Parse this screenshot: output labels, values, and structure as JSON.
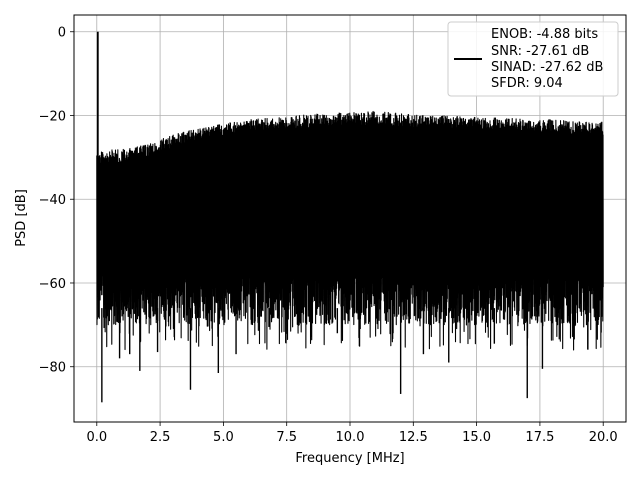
{
  "chart_data": {
    "type": "line",
    "xlabel": "Frequency [MHz]",
    "ylabel": "PSD [dB]",
    "xlim": [
      -0.9,
      20.9
    ],
    "ylim": [
      -93.2,
      4.0
    ],
    "x_ticks": [
      0.0,
      2.5,
      5.0,
      7.5,
      10.0,
      12.5,
      15.0,
      17.5,
      20.0
    ],
    "x_tick_labels": [
      "0.0",
      "2.5",
      "5.0",
      "7.5",
      "10.0",
      "12.5",
      "15.0",
      "17.5",
      "20.0"
    ],
    "y_ticks": [
      0,
      -20,
      -40,
      -60,
      -80
    ],
    "y_tick_labels": [
      "0",
      "−20",
      "−40",
      "−60",
      "−80"
    ],
    "grid": true,
    "legend_position": "top-right",
    "series": [
      {
        "legend_lines": [
          "ENOB: -4.88 bits",
          "SNR: -27.61 dB",
          "SINAD: -27.62 dB",
          "SFDR: 9.04"
        ],
        "color": "#000000",
        "spike": {
          "x": 0.04,
          "y": 0.0
        },
        "x_range": [
          0.0,
          20.0
        ],
        "upper_envelope": [
          [
            0.0,
            -28.5
          ],
          [
            1.0,
            -28.0
          ],
          [
            2.0,
            -27.0
          ],
          [
            3.0,
            -24.5
          ],
          [
            4.0,
            -23.0
          ],
          [
            5.0,
            -22.0
          ],
          [
            6.0,
            -21.0
          ],
          [
            7.0,
            -20.5
          ],
          [
            8.0,
            -20.0
          ],
          [
            9.0,
            -19.5
          ],
          [
            10.0,
            -19.0
          ],
          [
            11.0,
            -19.0
          ],
          [
            12.0,
            -19.5
          ],
          [
            13.0,
            -20.0
          ],
          [
            14.0,
            -20.0
          ],
          [
            15.0,
            -20.5
          ],
          [
            16.0,
            -20.5
          ],
          [
            17.0,
            -21.0
          ],
          [
            18.0,
            -21.0
          ],
          [
            19.0,
            -21.5
          ],
          [
            20.0,
            -21.5
          ]
        ],
        "band_floor": -58.0,
        "deep_dips": [
          {
            "x": 0.2,
            "y": -88.5
          },
          {
            "x": 0.9,
            "y": -78.0
          },
          {
            "x": 1.3,
            "y": -77.0
          },
          {
            "x": 1.7,
            "y": -81.0
          },
          {
            "x": 2.4,
            "y": -76.5
          },
          {
            "x": 3.7,
            "y": -85.5
          },
          {
            "x": 4.8,
            "y": -81.5
          },
          {
            "x": 5.5,
            "y": -77.0
          },
          {
            "x": 6.8,
            "y": -70.5
          },
          {
            "x": 9.5,
            "y": -72.0
          },
          {
            "x": 10.4,
            "y": -71.0
          },
          {
            "x": 12.0,
            "y": -86.5
          },
          {
            "x": 12.9,
            "y": -77.0
          },
          {
            "x": 13.9,
            "y": -79.0
          },
          {
            "x": 15.7,
            "y": -74.5
          },
          {
            "x": 17.0,
            "y": -87.5
          },
          {
            "x": 17.6,
            "y": -80.5
          },
          {
            "x": 18.9,
            "y": -70.0
          }
        ]
      }
    ]
  }
}
